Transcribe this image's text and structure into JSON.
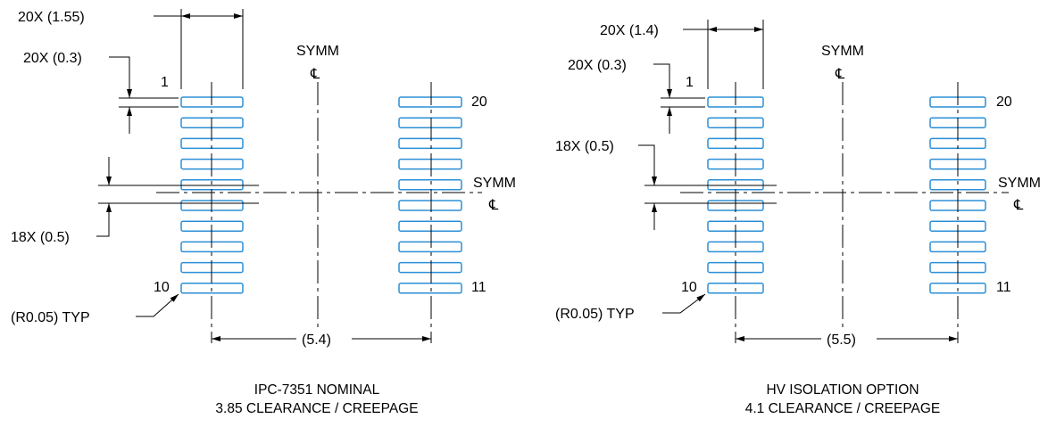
{
  "colors": {
    "pad_outline": "#2b8fd6",
    "line": "#000000",
    "background": "#ffffff"
  },
  "left": {
    "pad_length_label": "20X (1.55)",
    "pad_width_label": "20X (0.3)",
    "pitch_label": "18X (0.5)",
    "corner_radius_label": "(R0.05) TYP",
    "row_span_label": "(5.4)",
    "symm_top_label": "SYMM",
    "symm_side_label": "SYMM",
    "centerline_symbol": "℄",
    "pin_labels": {
      "p1": "1",
      "p10": "10",
      "p11": "11",
      "p20": "20"
    },
    "caption_line1": "IPC-7351 NOMINAL",
    "caption_line2": "3.85 CLEARANCE / CREEPAGE"
  },
  "right": {
    "pad_length_label": "20X (1.4)",
    "pad_width_label": "20X (0.3)",
    "pitch_label": "18X (0.5)",
    "corner_radius_label": "(R0.05) TYP",
    "row_span_label": "(5.5)",
    "symm_top_label": "SYMM",
    "symm_side_label": "SYMM",
    "centerline_symbol": "℄",
    "pin_labels": {
      "p1": "1",
      "p10": "10",
      "p11": "11",
      "p20": "20"
    },
    "caption_line1": "HV ISOLATION OPTION",
    "caption_line2": "4.1 CLEARANCE / CREEPAGE"
  }
}
